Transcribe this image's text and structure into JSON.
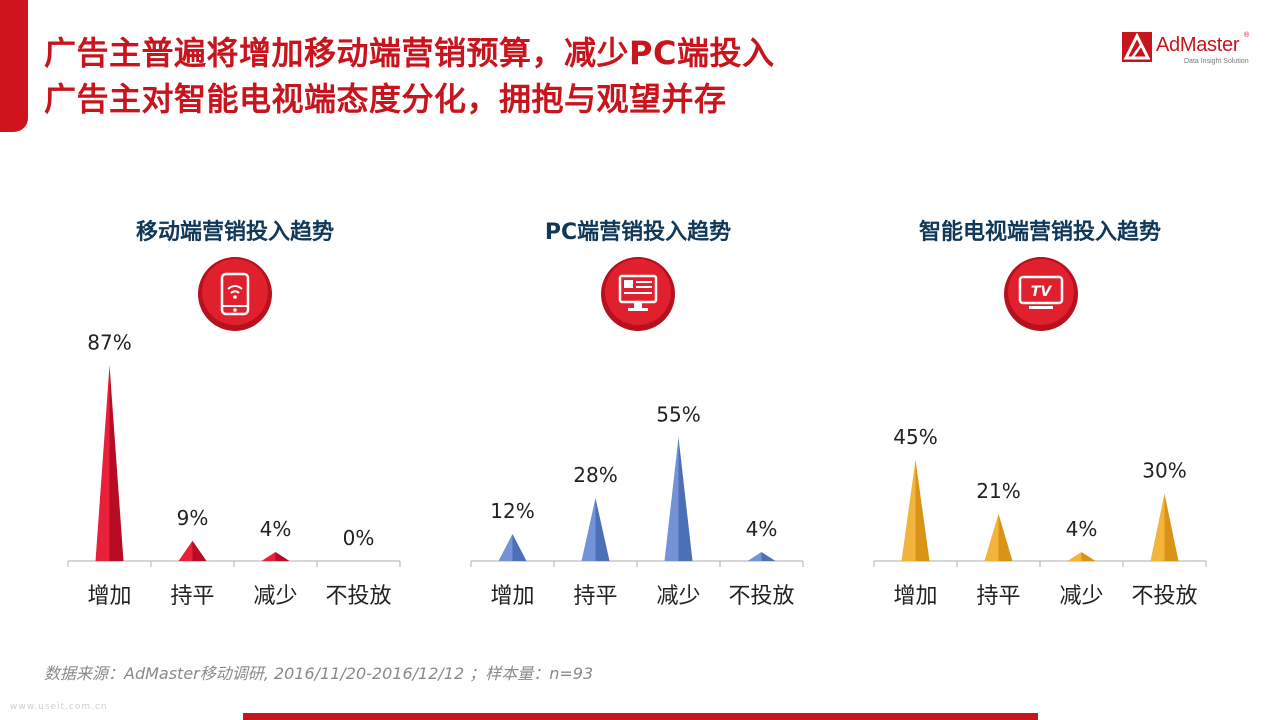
{
  "header": {
    "title_line1": "广告主普遍将增加移动端营销预算，减少PC端投入",
    "title_line2": "广告主对智能电视端态度分化，拥抱与观望并存"
  },
  "logo": {
    "brand": "AdMaster",
    "reg": "®",
    "tagline": "Data Insight Solution"
  },
  "icons": [
    "smartphone-wifi-icon",
    "desktop-monitor-icon",
    "tv-icon"
  ],
  "icon_labels": {
    "tv": "TV"
  },
  "colors": {
    "brand_red": "#c8141c",
    "title_navy": "#103858",
    "mobile": "#e8203a",
    "pc": "#7393d6",
    "tv": "#f2b43a"
  },
  "chart_data": [
    {
      "type": "bar",
      "title": "移动端营销投入趋势",
      "categories": [
        "增加",
        "持平",
        "减少",
        "不投放"
      ],
      "values": [
        87,
        9,
        4,
        0
      ],
      "labels": [
        "87%",
        "9%",
        "4%",
        "0%"
      ],
      "unit": "%",
      "ylim": [
        0,
        100
      ],
      "grid": false
    },
    {
      "type": "bar",
      "title": "PC端营销投入趋势",
      "categories": [
        "增加",
        "持平",
        "减少",
        "不投放"
      ],
      "values": [
        12,
        28,
        55,
        4
      ],
      "labels": [
        "12%",
        "28%",
        "55%",
        "4%"
      ],
      "unit": "%",
      "ylim": [
        0,
        100
      ],
      "grid": false
    },
    {
      "type": "bar",
      "title": "智能电视端营销投入趋势",
      "categories": [
        "增加",
        "持平",
        "减少",
        "不投放"
      ],
      "values": [
        45,
        21,
        4,
        30
      ],
      "labels": [
        "45%",
        "21%",
        "4%",
        "30%"
      ],
      "unit": "%",
      "ylim": [
        0,
        100
      ],
      "grid": false
    }
  ],
  "footer": {
    "source": "数据来源：AdMaster移动调研, 2016/11/20-2016/12/12 ；样本量：n=93",
    "watermark": "www.useit.com.cn"
  }
}
